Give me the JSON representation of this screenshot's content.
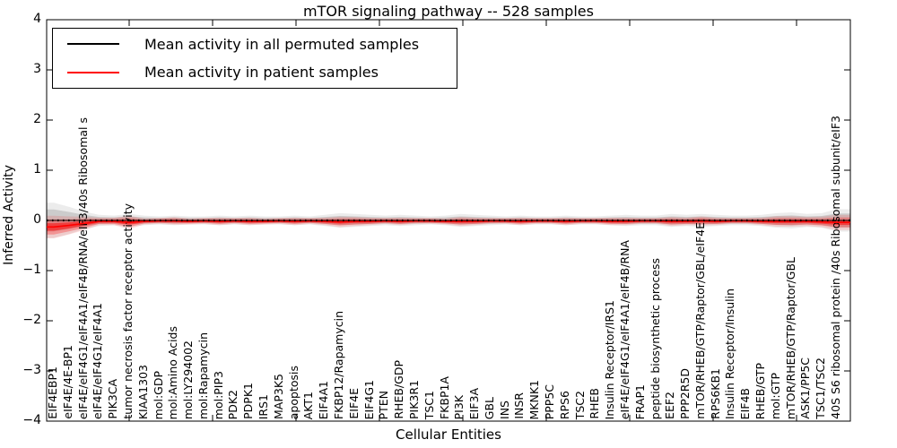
{
  "title": "mTOR signaling pathway -- 528 samples",
  "legend": {
    "items": [
      {
        "label": "Mean activity in all permuted samples",
        "color": "#000000"
      },
      {
        "label": "Mean activity in patient samples",
        "color": "#ff0000"
      }
    ]
  },
  "axes": {
    "y_label": "Inferred Activity",
    "x_label": "Cellular Entities",
    "y_tick_labels": [
      "4",
      "3",
      "2",
      "1",
      "0",
      "−1",
      "−2",
      "−3",
      "−4"
    ],
    "y_tick_values": [
      4,
      3,
      2,
      1,
      0,
      -1,
      -2,
      -3,
      -4
    ]
  },
  "chart_data": {
    "type": "line",
    "title": "mTOR signaling pathway -- 528 samples",
    "xlabel": "Cellular Entities",
    "ylabel": "Inferred Activity",
    "ylim": [
      -4,
      4
    ],
    "grid": false,
    "legend_position": "upper left",
    "band_note": "shaded bands show spread around each mean line",
    "colors": {
      "permuted": "#000000",
      "patient": "#ff0000",
      "permuted_band": "#808080",
      "patient_band": "#ff0000"
    },
    "categories": [
      "EIF4EBP1",
      "eIF4E/4E-BP1",
      "eIF4E/eIF4G1/eIF4A1/eIF4B/RNA/eIF3/40s Ribosomal s",
      "eIF4E/eIF4G1/eIF4A1",
      "PIK3CA",
      "tumor necrosis factor receptor activity",
      "KIAA1303",
      "mol:GDP",
      "mol:Amino Acids",
      "mol:LY294002",
      "mol:Rapamycin",
      "mol:PIP3",
      "PDK2",
      "PDPK1",
      "IRS1",
      "MAP3K5",
      "apoptosis",
      "AKT1",
      "EIF4A1",
      "FKBP12/Rapamycin",
      "EIF4E",
      "EIF4G1",
      "PTEN",
      "RHEB/GDP",
      "PIK3R1",
      "TSC1",
      "FKBP1A",
      "PI3K",
      "EIF3A",
      "GBL",
      "INS",
      "INSR",
      "MKNK1",
      "PPP5C",
      "RPS6",
      "TSC2",
      "RHEB",
      "Insulin Receptor/IRS1",
      "eIF4E/eIF4G1/eIF4A1/eIF4B/RNA",
      "FRAP1",
      "peptide biosynthetic process",
      "EEF2",
      "PPP2R5D",
      "mTOR/RHEB/GTP/Raptor/GBL/eIF4E",
      "RPS6KB1",
      "Insulin Receptor/Insulin",
      "EIF4B",
      "RHEB/GTP",
      "mol:GTP",
      "mTOR/RHEB/GTP/Raptor/GBL",
      "ASK1/PP5C",
      "TSC1/TSC2",
      "40S S6 ribosomal protein /40s Ribosomal subunit/eIF3"
    ],
    "series": [
      {
        "name": "Mean activity in all permuted samples",
        "color": "#000000",
        "values": [
          0,
          0,
          0,
          0,
          0,
          0,
          0,
          0,
          0,
          0,
          0,
          0,
          0,
          0,
          0,
          0,
          0,
          0,
          0,
          0,
          0,
          0,
          0,
          0,
          0,
          0,
          0,
          0,
          0,
          0,
          0,
          0,
          0,
          0,
          0,
          0,
          0,
          0,
          0,
          0,
          0,
          0,
          0,
          0,
          0,
          0,
          0,
          0,
          0,
          0,
          0,
          0,
          0
        ],
        "band_halfwidth": [
          0.22,
          0.17,
          0.11,
          0.07,
          0.06,
          0.08,
          0.06,
          0.05,
          0.06,
          0.05,
          0.05,
          0.06,
          0.05,
          0.06,
          0.05,
          0.05,
          0.06,
          0.05,
          0.07,
          0.09,
          0.08,
          0.07,
          0.06,
          0.07,
          0.06,
          0.05,
          0.06,
          0.08,
          0.07,
          0.06,
          0.05,
          0.06,
          0.05,
          0.05,
          0.06,
          0.05,
          0.05,
          0.06,
          0.07,
          0.06,
          0.06,
          0.08,
          0.07,
          0.08,
          0.07,
          0.06,
          0.06,
          0.07,
          0.09,
          0.1,
          0.08,
          0.09,
          0.14
        ]
      },
      {
        "name": "Mean activity in patient samples",
        "color": "#ff0000",
        "values": [
          -0.13,
          -0.1,
          -0.06,
          -0.02,
          -0.02,
          -0.04,
          -0.02,
          -0.01,
          -0.01,
          -0.02,
          -0.01,
          -0.02,
          -0.01,
          -0.02,
          -0.02,
          -0.01,
          -0.02,
          -0.01,
          -0.02,
          -0.03,
          -0.02,
          -0.02,
          -0.01,
          -0.02,
          -0.01,
          -0.01,
          -0.02,
          -0.02,
          -0.02,
          -0.01,
          -0.01,
          -0.02,
          -0.01,
          -0.01,
          -0.02,
          -0.01,
          -0.01,
          -0.02,
          -0.02,
          -0.01,
          -0.01,
          -0.02,
          -0.02,
          -0.01,
          -0.02,
          -0.01,
          -0.01,
          -0.02,
          -0.02,
          -0.02,
          -0.02,
          -0.03,
          -0.04
        ],
        "band_halfwidth": [
          0.15,
          0.12,
          0.09,
          0.05,
          0.05,
          0.09,
          0.04,
          0.04,
          0.05,
          0.04,
          0.04,
          0.05,
          0.04,
          0.05,
          0.04,
          0.04,
          0.05,
          0.04,
          0.05,
          0.07,
          0.06,
          0.05,
          0.04,
          0.05,
          0.04,
          0.04,
          0.04,
          0.06,
          0.05,
          0.04,
          0.04,
          0.05,
          0.04,
          0.04,
          0.05,
          0.04,
          0.04,
          0.05,
          0.05,
          0.04,
          0.04,
          0.06,
          0.05,
          0.06,
          0.05,
          0.04,
          0.04,
          0.05,
          0.07,
          0.07,
          0.06,
          0.07,
          0.1
        ]
      }
    ]
  }
}
